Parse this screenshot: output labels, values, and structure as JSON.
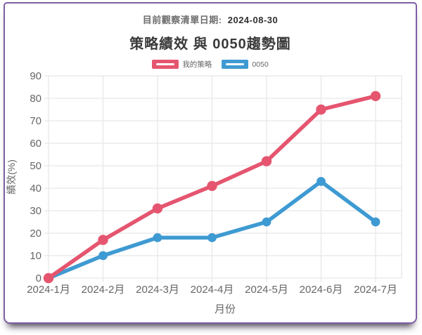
{
  "header": {
    "date_label": "目前觀察清單日期:",
    "date_value": "2024-08-30"
  },
  "title": "策略績效 與 0050趨勢圖",
  "legend": {
    "items": [
      {
        "label": "我的策略",
        "color": "#e5556f"
      },
      {
        "label": "0050",
        "color": "#3e9ad2"
      }
    ]
  },
  "chart_data": {
    "type": "line",
    "categories": [
      "2024-1月",
      "2024-2月",
      "2024-3月",
      "2024-4月",
      "2024-5月",
      "2024-6月",
      "2024-7月"
    ],
    "series": [
      {
        "name": "我的策略",
        "color": "#e5556f",
        "values": [
          0,
          17,
          31,
          41,
          52,
          75,
          81
        ]
      },
      {
        "name": "0050",
        "color": "#3e9ad2",
        "values": [
          0,
          10,
          18,
          18,
          25,
          43,
          25
        ]
      }
    ],
    "title": "策略績效 與 0050趨勢圖",
    "xlabel": "月份",
    "ylabel": "績效(%)",
    "ylim": [
      0,
      90
    ],
    "ytick_step": 10,
    "grid": true,
    "legend_position": "top"
  },
  "colors": {
    "card_border": "#7d5fa5",
    "grid": "#e7e7e7",
    "tick_text": "#666666"
  }
}
